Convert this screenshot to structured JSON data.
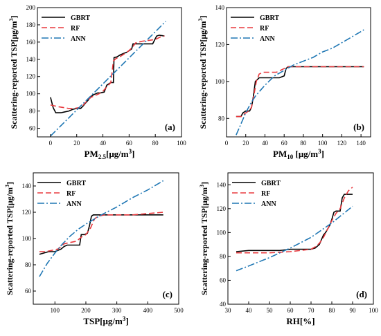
{
  "chart_data": [
    {
      "type": "line",
      "panel_label": "(a)",
      "xlabel": "PM2.5[μg/m3]",
      "xlabel_parts": {
        "base": "PM",
        "sub": "2.5",
        "unit": "[μg/m",
        "sup": "3",
        "close": "]"
      },
      "ylabel": "Scattering-reported TSP[μg/m3]",
      "ylabel_parts": {
        "base": "Scattering-reported TSP[μg/m",
        "sup": "3",
        "close": "]"
      },
      "xlim": [
        -10,
        100
      ],
      "ylim": [
        50,
        200
      ],
      "xticks": [
        0,
        20,
        40,
        60,
        80,
        100
      ],
      "yticks": [
        60,
        80,
        100,
        120,
        140,
        160,
        180,
        200
      ],
      "legend_position": "top-left",
      "series": [
        {
          "name": "GBRT",
          "color": "#000000",
          "dash": "solid",
          "x": [
            0,
            2,
            4,
            8,
            11,
            14,
            17,
            20,
            23,
            25,
            26,
            29,
            31,
            33,
            36,
            38,
            41,
            43,
            45,
            46,
            48,
            48.5,
            51,
            53,
            56,
            58,
            60,
            62,
            63,
            66,
            70,
            74,
            78,
            81,
            83,
            87
          ],
          "y": [
            96,
            84,
            78,
            78,
            79,
            80,
            82,
            83,
            83,
            86,
            88,
            93,
            97,
            99,
            101,
            101,
            102,
            110,
            112,
            113,
            113,
            142,
            143,
            145,
            147,
            148,
            150,
            152,
            158,
            158,
            158,
            158,
            158,
            167,
            168,
            167
          ]
        },
        {
          "name": "RF",
          "color": "#e8383d",
          "dash": "8,4",
          "x": [
            0,
            3,
            6,
            10,
            14,
            18,
            22,
            25,
            28,
            31,
            34,
            37,
            40,
            43,
            46,
            48,
            50,
            53,
            56,
            59,
            62,
            65,
            70,
            75,
            80,
            84,
            87
          ],
          "y": [
            87,
            86,
            85,
            84,
            83,
            83,
            84,
            87,
            92,
            96,
            98,
            100,
            103,
            108,
            113,
            138,
            141,
            143,
            146,
            149,
            153,
            159,
            161,
            162,
            163,
            166,
            167
          ]
        },
        {
          "name": "ANN",
          "color": "#1f77b4",
          "dash": "10,3,2,3",
          "x": [
            0,
            88
          ],
          "y": [
            51,
            184
          ]
        }
      ]
    },
    {
      "type": "line",
      "panel_label": "(b)",
      "xlabel": "PM10 [μg/m3]",
      "xlabel_parts": {
        "base": "PM",
        "sub": "10",
        "unit": " [μg/m",
        "sup": "3",
        "close": "]"
      },
      "ylabel": "Scattering-reported TSP[μg/m3]",
      "ylabel_parts": {
        "base": "Scattering-reported TSP[μg/m",
        "sup": "3",
        "close": "]"
      },
      "xlim": [
        0,
        150
      ],
      "ylim": [
        70,
        140
      ],
      "xticks": [
        0,
        20,
        40,
        60,
        80,
        100,
        120,
        140
      ],
      "yticks": [
        80,
        100,
        120,
        140
      ],
      "legend_position": "top-left",
      "series": [
        {
          "name": "GBRT",
          "color": "#000000",
          "dash": "solid",
          "x": [
            10,
            15,
            17,
            20,
            24,
            26,
            28,
            30,
            32,
            34,
            37,
            40,
            45,
            50,
            55,
            60,
            62,
            64,
            70,
            80,
            100,
            120,
            143
          ],
          "y": [
            81,
            81,
            83,
            84,
            84,
            86,
            92,
            100,
            101,
            102,
            102,
            102,
            102,
            102,
            102,
            103,
            107,
            108,
            108,
            108,
            108,
            108,
            108
          ]
        },
        {
          "name": "RF",
          "color": "#e8383d",
          "dash": "8,4",
          "x": [
            10,
            15,
            20,
            23,
            26,
            29,
            31,
            34,
            38,
            42,
            47,
            52,
            56,
            60,
            64,
            70,
            80,
            100,
            120,
            143
          ],
          "y": [
            81,
            81,
            83,
            84,
            86,
            94,
            100,
            104,
            105,
            105,
            105,
            105,
            106,
            107,
            108,
            108,
            108,
            108,
            108,
            108
          ]
        },
        {
          "name": "ANN",
          "color": "#1f77b4",
          "dash": "10,3,2,3",
          "x": [
            10,
            15,
            20,
            25,
            30,
            35,
            40,
            50,
            60,
            70,
            80,
            90,
            100,
            110,
            120,
            130,
            143
          ],
          "y": [
            71,
            77,
            83,
            88,
            92,
            95,
            98,
            103,
            106,
            109,
            111,
            113,
            116,
            118,
            121,
            124,
            128
          ]
        }
      ]
    },
    {
      "type": "line",
      "panel_label": "(c)",
      "xlabel": "TSP[μg/m3]",
      "xlabel_parts": {
        "base": "TSP",
        "sub": "",
        "unit": "[μg/m",
        "sup": "3",
        "close": "]"
      },
      "ylabel": "Scattering-reported TSP[μg/m3]",
      "ylabel_parts": {
        "base": "Scattering-reported TSP[μg/m",
        "sup": "3",
        "close": "]"
      },
      "xlim": [
        30,
        500
      ],
      "ylim": [
        50,
        150
      ],
      "xticks": [
        100,
        200,
        300,
        400,
        500
      ],
      "yticks": [
        60,
        80,
        100,
        120,
        140
      ],
      "legend_position": "top-left",
      "series": [
        {
          "name": "GBRT",
          "color": "#000000",
          "dash": "solid",
          "x": [
            50,
            65,
            80,
            100,
            110,
            120,
            130,
            140,
            150,
            160,
            170,
            180,
            185,
            195,
            205,
            212,
            218,
            224,
            230,
            260,
            300,
            350,
            400,
            450
          ],
          "y": [
            88,
            89,
            90,
            90,
            91,
            92,
            94,
            95,
            95,
            95,
            95,
            95,
            103,
            103,
            104,
            110,
            117,
            118,
            118,
            118,
            118,
            118,
            118,
            118
          ]
        },
        {
          "name": "RF",
          "color": "#e8383d",
          "dash": "8,4",
          "x": [
            50,
            70,
            90,
            110,
            130,
            150,
            170,
            185,
            200,
            215,
            228,
            240,
            260,
            300,
            350,
            400,
            450
          ],
          "y": [
            90,
            90,
            91,
            92,
            96,
            97,
            98,
            101,
            103,
            108,
            115,
            117,
            118,
            118,
            118,
            119,
            120
          ]
        },
        {
          "name": "ANN",
          "color": "#1f77b4",
          "dash": "10,3,2,3",
          "x": [
            50,
            75,
            100,
            125,
            150,
            175,
            200,
            250,
            300,
            350,
            400,
            450
          ],
          "y": [
            71,
            81,
            89,
            96,
            102,
            107,
            111,
            118,
            124,
            131,
            137,
            144
          ]
        }
      ]
    },
    {
      "type": "line",
      "panel_label": "(d)",
      "xlabel": "RH[%]",
      "xlabel_parts": {
        "base": "RH[%]",
        "sub": "",
        "unit": "",
        "sup": "",
        "close": ""
      },
      "ylabel": "Scattering-reported TSP[μg/m3]",
      "ylabel_parts": {
        "base": "Scattering-reported TSP[μg/m",
        "sup": "3",
        "close": "]"
      },
      "xlim": [
        30,
        100
      ],
      "ylim": [
        40,
        150
      ],
      "xticks": [
        30,
        40,
        50,
        60,
        70,
        80,
        90,
        100
      ],
      "yticks": [
        40,
        60,
        80,
        100,
        120,
        140
      ],
      "legend_position": "top-left",
      "series": [
        {
          "name": "GBRT",
          "color": "#000000",
          "dash": "solid",
          "x": [
            34,
            40,
            45,
            50,
            55,
            60,
            65,
            70,
            72,
            74,
            75,
            76,
            77,
            78,
            79,
            80,
            81,
            82,
            84,
            85,
            86,
            88,
            90
          ],
          "y": [
            84,
            85,
            85,
            85,
            85,
            86,
            86,
            86,
            87,
            90,
            94,
            98,
            100,
            103,
            106,
            111,
            117,
            118,
            118,
            129,
            132,
            132,
            132
          ]
        },
        {
          "name": "RF",
          "color": "#e8383d",
          "dash": "8,4",
          "x": [
            34,
            40,
            50,
            60,
            70,
            72,
            74,
            76,
            78,
            80,
            82,
            84,
            86,
            88,
            90
          ],
          "y": [
            83,
            83,
            83,
            84,
            86,
            88,
            91,
            96,
            103,
            110,
            116,
            120,
            129,
            135,
            138
          ]
        },
        {
          "name": "ANN",
          "color": "#1f77b4",
          "dash": "10,3,2,3",
          "x": [
            34,
            40,
            50,
            60,
            70,
            80,
            90
          ],
          "y": [
            68,
            72,
            79,
            87,
            96,
            108,
            122
          ]
        }
      ]
    }
  ]
}
